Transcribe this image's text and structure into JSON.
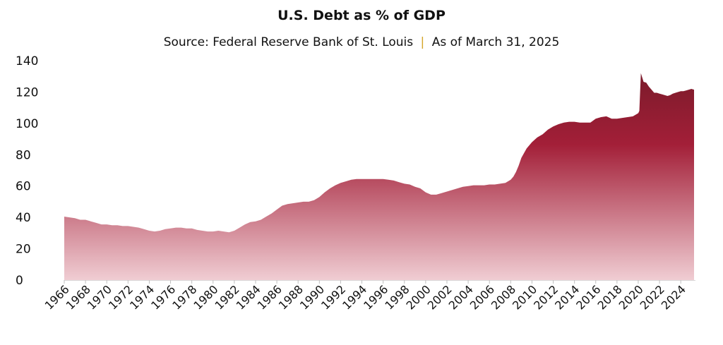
{
  "chart_data": {
    "type": "area",
    "title": "U.S. Debt as % of GDP",
    "subtitle": {
      "source": "Source: Federal Reserve Bank of St. Louis",
      "separator": "|",
      "as_of": "As of March 31, 2025"
    },
    "xlabel": "",
    "ylabel": "",
    "ylim": [
      0,
      140
    ],
    "yticks": [
      0,
      20,
      40,
      60,
      80,
      100,
      120,
      140
    ],
    "xlim": [
      1966,
      2025.25
    ],
    "xticks": [
      "1966",
      "1968",
      "1970",
      "1972",
      "1974",
      "1976",
      "1978",
      "1980",
      "1982",
      "1984",
      "1986",
      "1988",
      "1990",
      "1992",
      "1994",
      "1996",
      "1998",
      "2000",
      "2002",
      "2004",
      "2006",
      "2008",
      "2010",
      "2012",
      "2014",
      "2016",
      "2018",
      "2020",
      "2022",
      "2024"
    ],
    "grid": false,
    "legend": "none",
    "colors": {
      "top": "#7a1a2a",
      "mid": "#a31f38",
      "bottom": "#f0cdd3",
      "separator": "#d4a52a"
    },
    "series": [
      {
        "x": [
          1966,
          1966.5,
          1967,
          1967.5,
          1968,
          1968.5,
          1969,
          1969.5,
          1970,
          1970.5,
          1971,
          1971.5,
          1972,
          1972.5,
          1973,
          1973.5,
          1974,
          1974.5,
          1975,
          1975.5,
          1976,
          1976.5,
          1977,
          1977.5,
          1978,
          1978.5,
          1979,
          1979.5,
          1980,
          1980.5,
          1981,
          1981.5,
          1982,
          1982.5,
          1983,
          1983.5,
          1984,
          1984.5,
          1985,
          1985.5,
          1986,
          1986.5,
          1987,
          1987.5,
          1988,
          1988.5,
          1989,
          1989.5,
          1990,
          1990.5,
          1991,
          1991.5,
          1992,
          1992.5,
          1993,
          1993.5,
          1994,
          1994.5,
          1995,
          1995.5,
          1996,
          1996.5,
          1997,
          1997.5,
          1998,
          1998.5,
          1999,
          1999.5,
          2000,
          2000.5,
          2001,
          2001.5,
          2002,
          2002.5,
          2003,
          2003.5,
          2004,
          2004.5,
          2005,
          2005.5,
          2006,
          2006.5,
          2007,
          2007.5,
          2008,
          2008.25,
          2008.5,
          2008.75,
          2009,
          2009.25,
          2009.5,
          2010,
          2010.5,
          2011,
          2011.5,
          2012,
          2012.5,
          2013,
          2013.5,
          2014,
          2014.5,
          2015,
          2015.5,
          2016,
          2016.5,
          2017,
          2017.5,
          2018,
          2018.5,
          2019,
          2019.5,
          2019.75,
          2020,
          2020.1,
          2020.25,
          2020.5,
          2020.75,
          2021,
          2021.25,
          2021.5,
          2021.75,
          2022,
          2022.25,
          2022.5,
          2022.75,
          2023,
          2023.25,
          2023.5,
          2023.75,
          2024,
          2024.25,
          2024.5,
          2024.75,
          2025,
          2025.25
        ],
        "values": [
          40.5,
          40,
          39.5,
          38.5,
          38.5,
          37.5,
          36.5,
          35.5,
          35.5,
          35,
          35,
          34.5,
          34.5,
          34,
          33.5,
          32.5,
          31.5,
          31,
          31.5,
          32.5,
          33,
          33.5,
          33.5,
          33,
          33,
          32,
          31.5,
          31,
          31,
          31.5,
          31,
          30.5,
          31.5,
          33.5,
          35.5,
          37,
          37.5,
          38.5,
          40.5,
          42.5,
          45,
          47.5,
          48.5,
          49,
          49.5,
          50,
          50,
          51,
          53,
          56,
          58.5,
          60.5,
          62,
          63,
          64,
          64.5,
          64.5,
          64.5,
          64.5,
          64.5,
          64.5,
          64,
          63.5,
          62.5,
          61.5,
          61,
          59.5,
          58.5,
          56,
          54.5,
          54.5,
          55.5,
          56.5,
          57.5,
          58.5,
          59.5,
          60,
          60.5,
          60.5,
          60.5,
          61,
          61,
          61.5,
          62,
          64,
          66,
          69,
          73,
          78,
          81,
          84,
          88,
          91,
          93,
          96,
          98,
          99.5,
          100.5,
          101,
          101,
          100.5,
          100.5,
          100.5,
          103,
          104,
          104.5,
          103,
          103,
          103.5,
          104,
          104.5,
          105.5,
          106.5,
          108,
          132,
          126.5,
          126,
          123.5,
          121.5,
          119.5,
          119.5,
          119,
          118.5,
          118,
          117.5,
          118,
          119,
          119.5,
          120,
          120.5,
          120.5,
          121,
          121.5,
          122,
          121.5
        ]
      }
    ]
  }
}
